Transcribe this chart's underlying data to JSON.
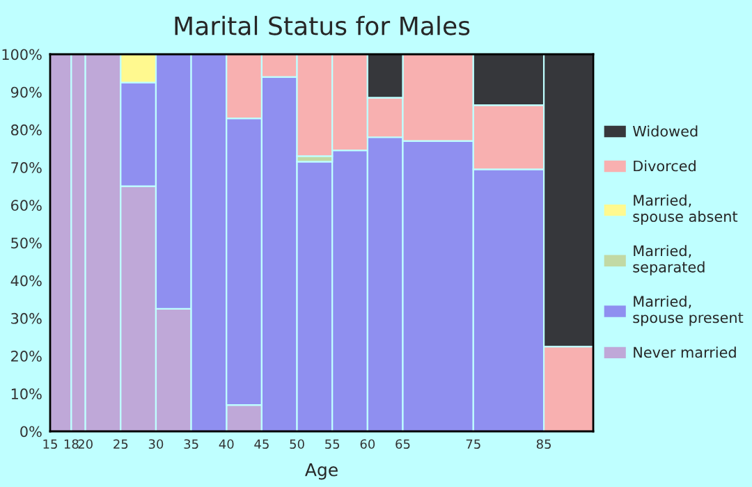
{
  "chart_data": {
    "type": "bar",
    "stacked": true,
    "title": "Marital Status for Males",
    "xlabel": "Age",
    "x": [
      16.5,
      19,
      22.5,
      27.5,
      32.5,
      37.5,
      42.5,
      47.5,
      52.5,
      57.5,
      62.5,
      70,
      80,
      88.5
    ],
    "xlim": [
      15,
      92
    ],
    "xticks": [
      15,
      18,
      20,
      25,
      30,
      35,
      40,
      45,
      50,
      55,
      60,
      65,
      75,
      85
    ],
    "ylim": [
      0,
      100
    ],
    "yticks": [
      {
        "value": 0,
        "label": "0%"
      },
      {
        "value": 10,
        "label": "10%"
      },
      {
        "value": 20,
        "label": "20%"
      },
      {
        "value": 30,
        "label": "30%"
      },
      {
        "value": 40,
        "label": "40%"
      },
      {
        "value": 50,
        "label": "50%"
      },
      {
        "value": 60,
        "label": "60%"
      },
      {
        "value": 70,
        "label": "70%"
      },
      {
        "value": 80,
        "label": "80%"
      },
      {
        "value": 90,
        "label": "90%"
      },
      {
        "value": 100,
        "label": "100%"
      }
    ],
    "legend": "right",
    "series": [
      {
        "name": "Never married",
        "color": "#bfa8d8",
        "values": [
          100,
          100,
          100,
          65,
          32.5,
          0,
          7,
          0,
          0,
          0,
          0,
          0,
          0,
          0
        ]
      },
      {
        "name": "Married, spouse present",
        "color": "#8f8ff0",
        "values": [
          0,
          0,
          0,
          27.5,
          67.5,
          100,
          76,
          94,
          71.5,
          74.5,
          78,
          77,
          69.5,
          0
        ]
      },
      {
        "name": "Married, separated",
        "color": "#c2d9a4",
        "values": [
          0,
          0,
          0,
          0,
          0,
          0,
          0,
          0,
          1.5,
          0,
          0,
          0,
          0,
          0
        ]
      },
      {
        "name": "Married, spouse absent",
        "color": "#fff98f",
        "values": [
          0,
          0,
          0,
          7.5,
          0,
          0,
          0,
          0,
          0,
          0,
          0,
          0,
          0,
          0
        ]
      },
      {
        "name": "Divorced",
        "color": "#f8b0b0",
        "values": [
          0,
          0,
          0,
          0,
          0,
          0,
          17,
          6,
          27,
          25.5,
          10.5,
          23,
          17,
          22.5
        ]
      },
      {
        "name": "Widowed",
        "color": "#36373b",
        "values": [
          0,
          0,
          0,
          0,
          0,
          0,
          0,
          0,
          0,
          0,
          11.5,
          0,
          13.5,
          77.5
        ]
      }
    ]
  }
}
